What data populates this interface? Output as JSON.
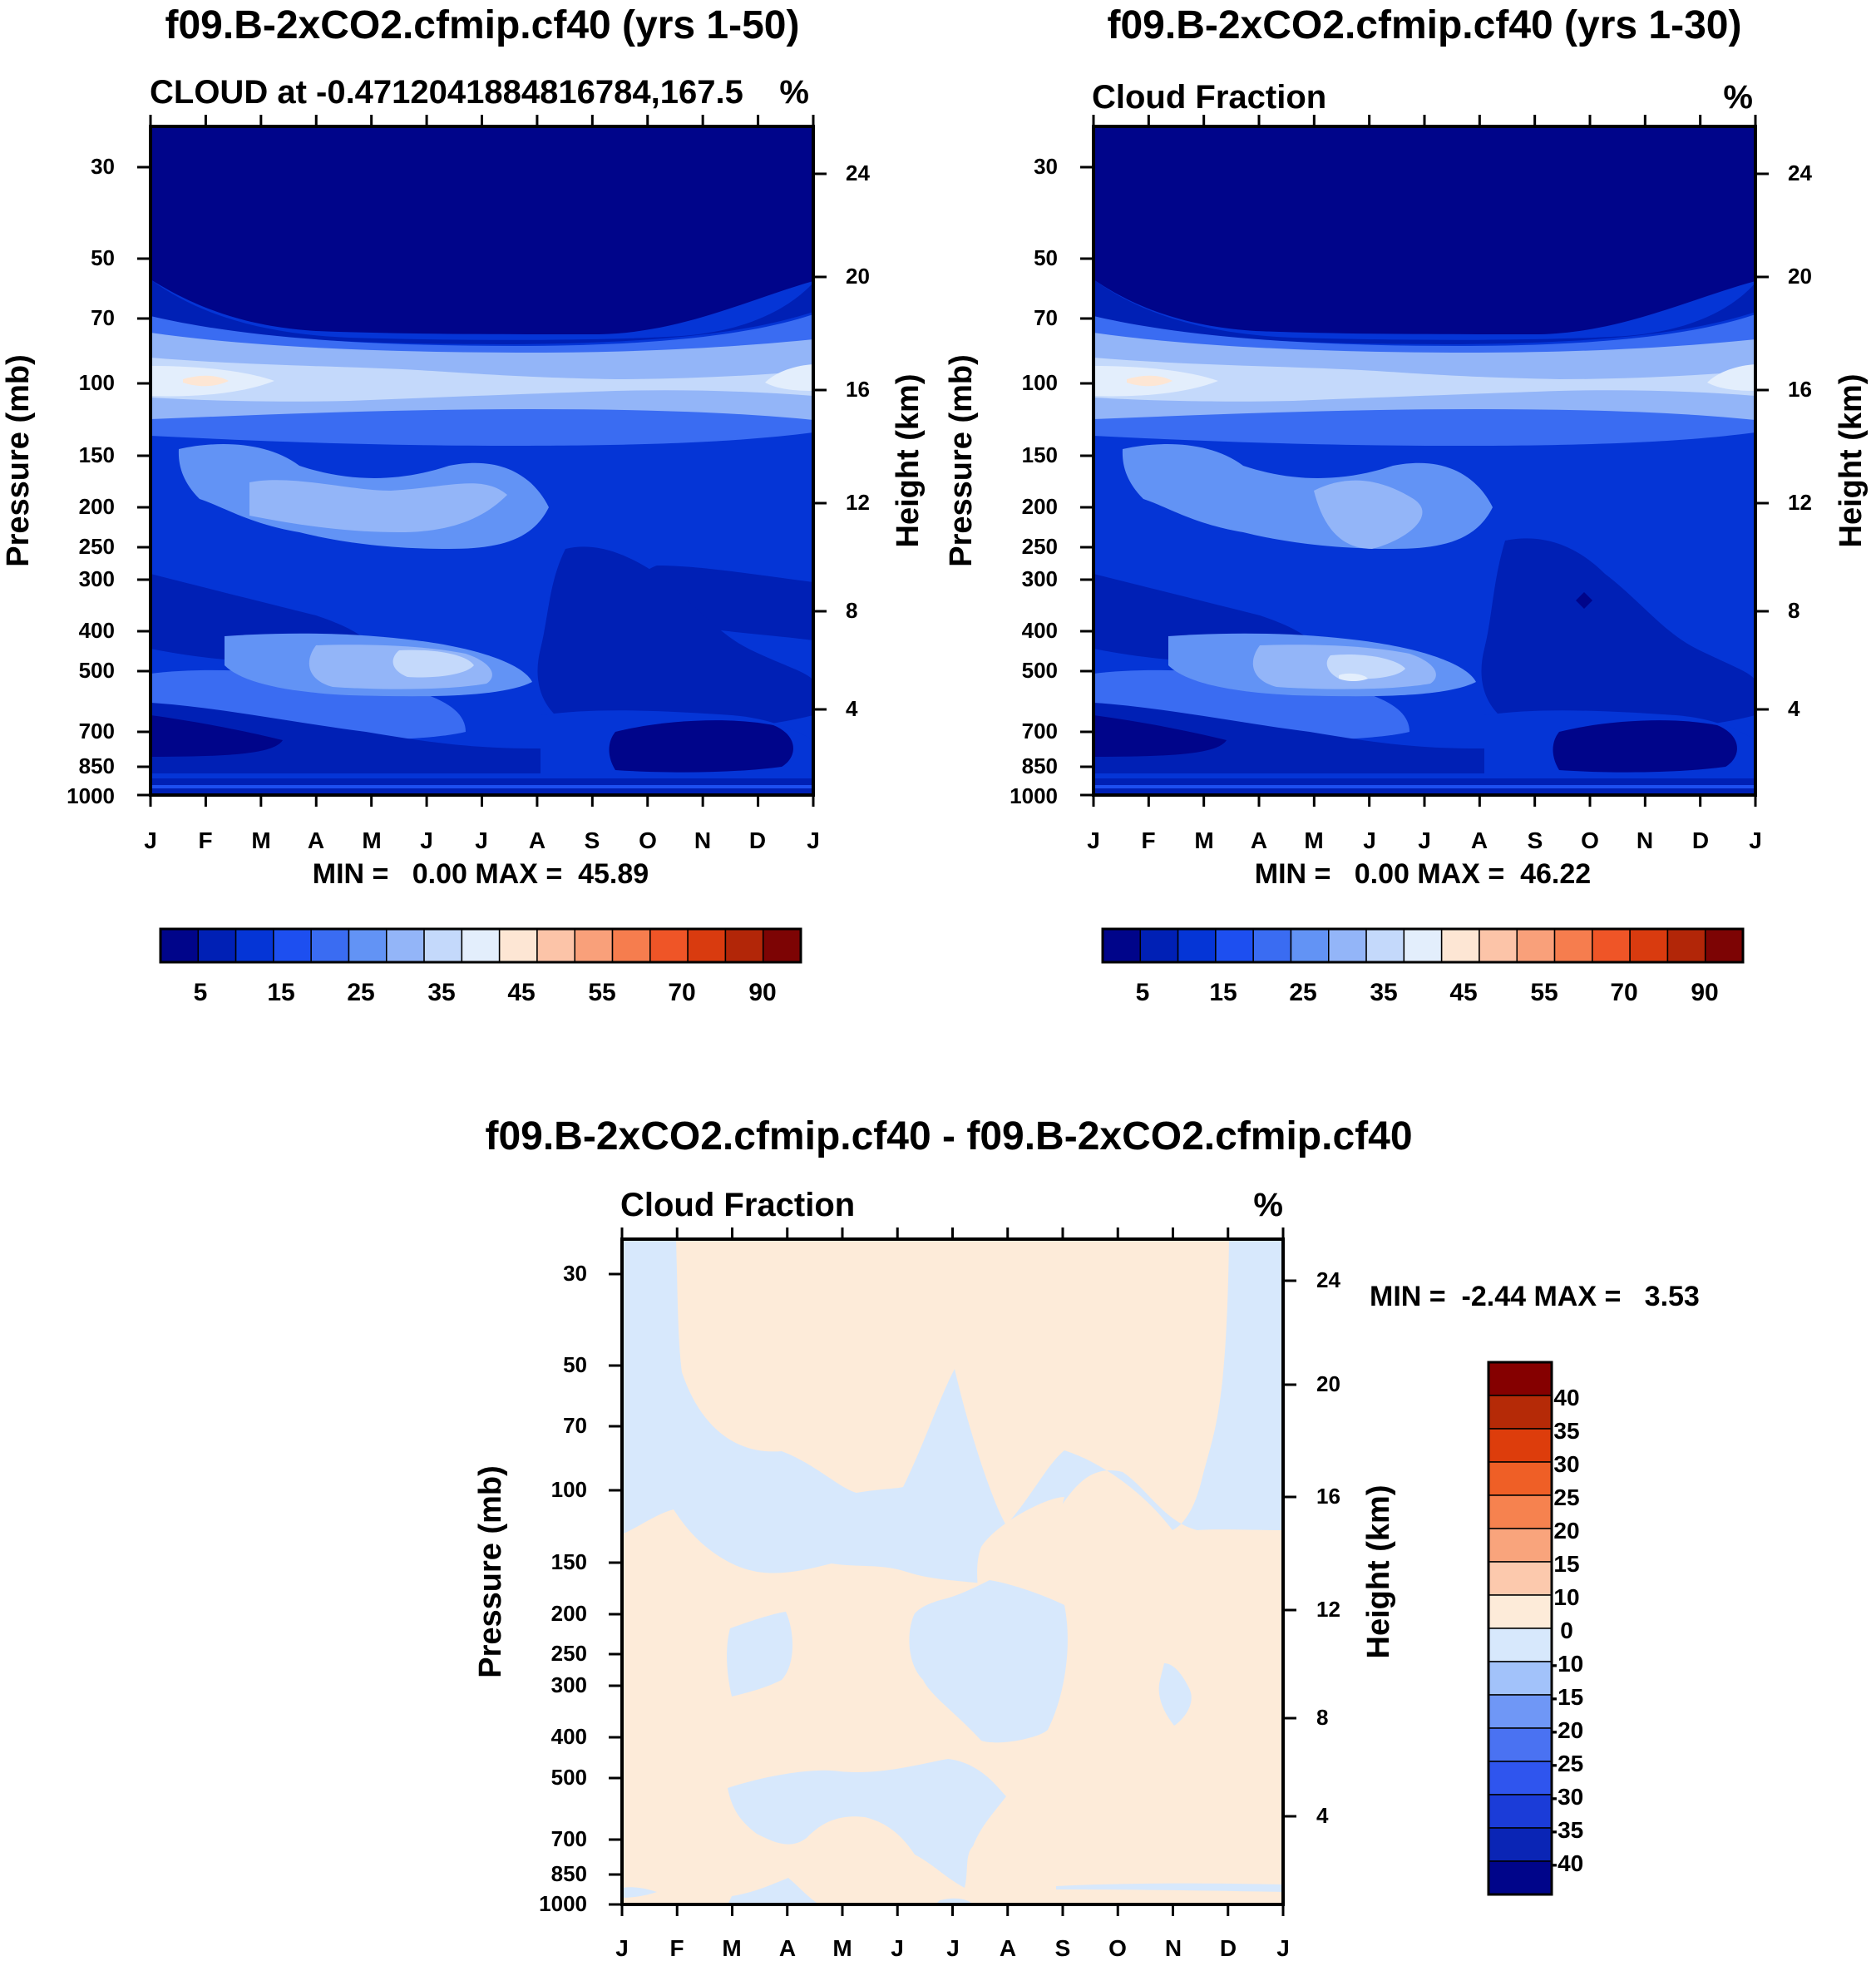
{
  "chart_data": [
    {
      "type": "contour",
      "title": "f09.B-2xCO2.cfmip.cf40 (yrs 1-50)",
      "left_label": "CLOUD at -0.4712041884816784,167.5",
      "right_label": "%",
      "ylabel": "Pressure (mb)",
      "ylabel_right": "Height (km)",
      "x_ticks": [
        "J",
        "F",
        "M",
        "A",
        "M",
        "J",
        "J",
        "A",
        "S",
        "O",
        "N",
        "D",
        "J"
      ],
      "y_ticks": [
        "30",
        "50",
        "70",
        "100",
        "150",
        "200",
        "250",
        "300",
        "400",
        "500",
        "700",
        "850",
        "1000"
      ],
      "y2_ticks": [
        "24",
        "20",
        "16",
        "12",
        "8",
        "4"
      ],
      "stats": "MIN =   0.00 MAX =  45.89",
      "colorbar_labels": [
        "5",
        "15",
        "25",
        "35",
        "45",
        "55",
        "70",
        "90"
      ],
      "levels": [
        5,
        10,
        15,
        20,
        25,
        30,
        35,
        40,
        45,
        50,
        55,
        60,
        70,
        80,
        90
      ]
    },
    {
      "type": "contour",
      "title": "f09.B-2xCO2.cfmip.cf40 (yrs 1-30)",
      "left_label": "Cloud Fraction",
      "right_label": "%",
      "ylabel": "Pressure (mb)",
      "ylabel_right": "Height (km)",
      "x_ticks": [
        "J",
        "F",
        "M",
        "A",
        "M",
        "J",
        "J",
        "A",
        "S",
        "O",
        "N",
        "D",
        "J"
      ],
      "y_ticks": [
        "30",
        "50",
        "70",
        "100",
        "150",
        "200",
        "250",
        "300",
        "400",
        "500",
        "700",
        "850",
        "1000"
      ],
      "y2_ticks": [
        "24",
        "20",
        "16",
        "12",
        "8",
        "4"
      ],
      "stats": "MIN =   0.00 MAX =  46.22",
      "colorbar_labels": [
        "5",
        "15",
        "25",
        "35",
        "45",
        "55",
        "70",
        "90"
      ],
      "levels": [
        5,
        10,
        15,
        20,
        25,
        30,
        35,
        40,
        45,
        50,
        55,
        60,
        70,
        80,
        90
      ]
    },
    {
      "type": "contour",
      "title": "f09.B-2xCO2.cfmip.cf40 - f09.B-2xCO2.cfmip.cf40",
      "left_label": "Cloud Fraction",
      "right_label": "%",
      "ylabel": "Pressure (mb)",
      "ylabel_right": "Height (km)",
      "x_ticks": [
        "J",
        "F",
        "M",
        "A",
        "M",
        "J",
        "J",
        "A",
        "S",
        "O",
        "N",
        "D",
        "J"
      ],
      "y_ticks": [
        "30",
        "50",
        "70",
        "100",
        "150",
        "200",
        "250",
        "300",
        "400",
        "500",
        "700",
        "850",
        "1000"
      ],
      "y2_ticks": [
        "24",
        "20",
        "16",
        "12",
        "8",
        "4"
      ],
      "stats": "MIN =  -2.44 MAX =   3.53",
      "colorbar_labels": [
        "40",
        "35",
        "30",
        "25",
        "20",
        "15",
        "10",
        "0",
        "-10",
        "-15",
        "-20",
        "-25",
        "-30",
        "-35",
        "-40"
      ],
      "levels": [
        -40,
        -35,
        -30,
        -25,
        -20,
        -15,
        -10,
        0,
        10,
        15,
        20,
        25,
        30,
        35,
        40
      ]
    }
  ],
  "colors": {
    "cloud_scale": [
      "#00058a",
      "#0020b5",
      "#0535d6",
      "#1d4ff0",
      "#3a6cf2",
      "#6293f5",
      "#93b5f8",
      "#c4d9fb",
      "#e3eefc",
      "#fde6d4",
      "#fcc4a8",
      "#f9a07a",
      "#f67d4e",
      "#ef5527",
      "#d93b0f",
      "#b22608",
      "#7d0404"
    ],
    "diff_scale": [
      "#00058a",
      "#0a25b5",
      "#1b3cd8",
      "#2f55ee",
      "#4a72f2",
      "#6f97f6",
      "#a2c2fa",
      "#d7e8fc",
      "#fdebd9",
      "#fcc9ad",
      "#f9a47c",
      "#f6824f",
      "#ef5f26",
      "#dd3d0c",
      "#b52a07",
      "#850000"
    ]
  }
}
